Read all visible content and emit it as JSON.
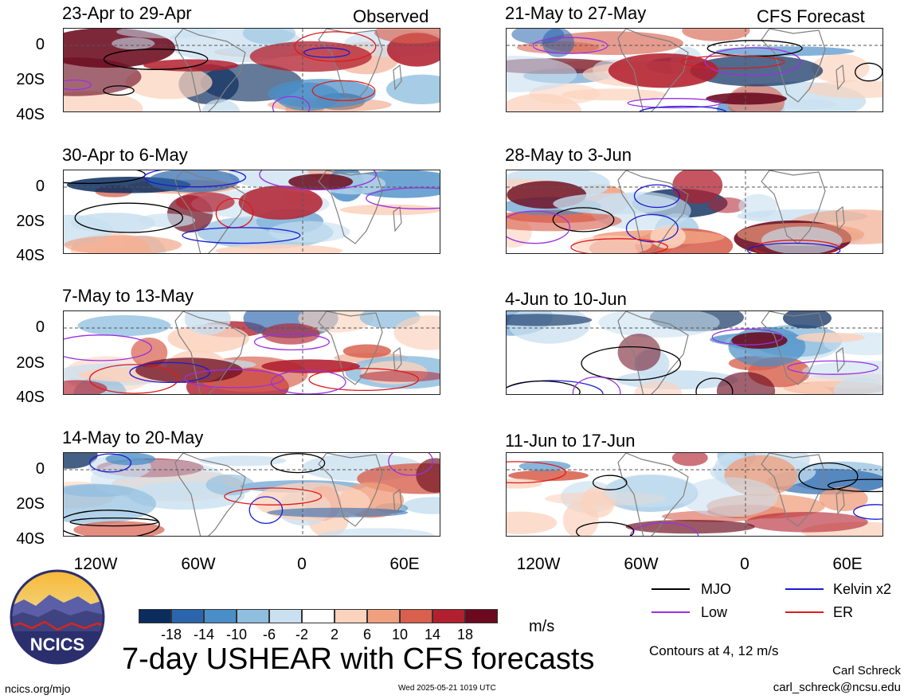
{
  "title": "7-day USHEAR with CFS forecasts",
  "units_label": "m/s",
  "contour_note": "Contours at 4, 12 m/s",
  "author": "Carl Schreck",
  "email": "carl_schreck@ncsu.edu",
  "website": "ncics.org/mjo",
  "timestamp": "Wed 2025-05-21 1019 UTC",
  "logo_text": "NCICS",
  "observed_label": "Observed",
  "forecast_label": "CFS Forecast",
  "y_ticks": [
    "0",
    "20S",
    "40S"
  ],
  "x_ticks": [
    "120W",
    "60W",
    "0",
    "60E"
  ],
  "legend": [
    {
      "label": "MJO",
      "color": "#000000"
    },
    {
      "label": "Kelvin x2",
      "color": "#1a1ad6"
    },
    {
      "label": "Low",
      "color": "#9b30e0"
    },
    {
      "label": "ER",
      "color": "#e01a1a"
    }
  ],
  "colorbar": {
    "colors": [
      "#0b2d5e",
      "#2b66ad",
      "#4a8ec7",
      "#8fbedf",
      "#c9e0f0",
      "#ffffff",
      "#fbd2bd",
      "#f0a07f",
      "#d8604d",
      "#b2202f",
      "#6b0a1e"
    ],
    "labels": [
      "-18",
      "-14",
      "-10",
      "-6",
      "-2",
      "2",
      "6",
      "10",
      "14",
      "18"
    ]
  },
  "chart_data": {
    "type": "heatmap",
    "variable": "7-day USHEAR",
    "units": "m/s",
    "x_ticks": [
      "120W",
      "60W",
      "0",
      "60E"
    ],
    "y_ticks": [
      "0",
      "20S",
      "40S"
    ],
    "contour_levels": [
      4,
      12
    ],
    "contour_types": [
      "MJO",
      "Kelvin x2",
      "Low",
      "ER"
    ],
    "panels": [
      {
        "period": "23-Apr to 29-Apr",
        "kind": "Observed"
      },
      {
        "period": "30-Apr to 6-May",
        "kind": "Observed"
      },
      {
        "period": "7-May to 13-May",
        "kind": "Observed"
      },
      {
        "period": "14-May to 20-May",
        "kind": "Observed"
      },
      {
        "period": "21-May to 27-May",
        "kind": "CFS Forecast"
      },
      {
        "period": "28-May to 3-Jun",
        "kind": "CFS Forecast"
      },
      {
        "period": "4-Jun to 10-Jun",
        "kind": "CFS Forecast"
      },
      {
        "period": "11-Jun to 17-Jun",
        "kind": "CFS Forecast"
      }
    ]
  }
}
